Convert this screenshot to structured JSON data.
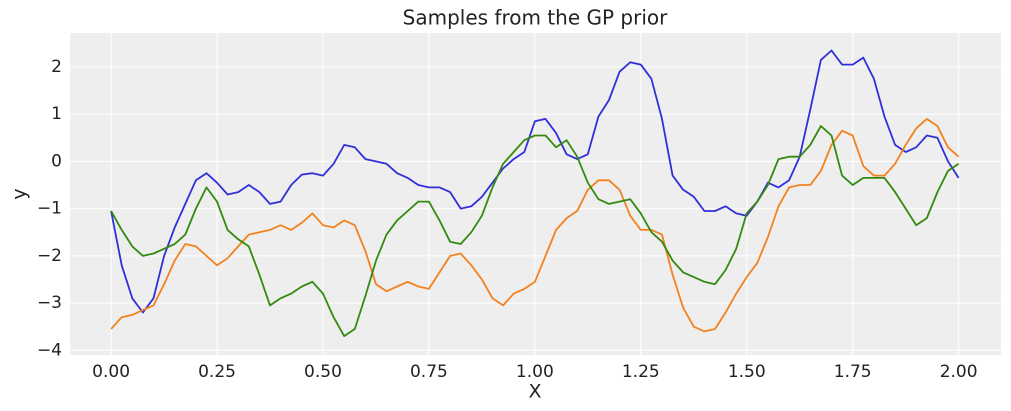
{
  "chart_data": {
    "type": "line",
    "title": "Samples from the GP prior",
    "xlabel": "X",
    "ylabel": "y",
    "x": [
      0,
      0.025,
      0.05,
      0.075,
      0.1,
      0.125,
      0.15,
      0.175,
      0.2,
      0.225,
      0.25,
      0.275,
      0.3,
      0.325,
      0.35,
      0.375,
      0.4,
      0.425,
      0.45,
      0.475,
      0.5,
      0.525,
      0.55,
      0.575,
      0.6,
      0.625,
      0.65,
      0.675,
      0.7,
      0.725,
      0.75,
      0.775,
      0.8,
      0.825,
      0.85,
      0.875,
      0.9,
      0.925,
      0.95,
      0.975,
      1,
      1.025,
      1.05,
      1.075,
      1.1,
      1.125,
      1.15,
      1.175,
      1.2,
      1.225,
      1.25,
      1.275,
      1.3,
      1.325,
      1.35,
      1.375,
      1.4,
      1.425,
      1.45,
      1.475,
      1.5,
      1.525,
      1.55,
      1.575,
      1.6,
      1.625,
      1.65,
      1.675,
      1.7,
      1.725,
      1.75,
      1.775,
      1.8,
      1.825,
      1.85,
      1.875,
      1.9,
      1.925,
      1.95,
      1.975,
      2
    ],
    "series": [
      {
        "color": "#3030d8",
        "values": [
          -1.05,
          -2.2,
          -2.9,
          -3.2,
          -2.9,
          -2.0,
          -1.4,
          -0.9,
          -0.4,
          -0.25,
          -0.45,
          -0.7,
          -0.65,
          -0.5,
          -0.65,
          -0.9,
          -0.85,
          -0.5,
          -0.28,
          -0.25,
          -0.3,
          -0.05,
          0.35,
          0.3,
          0.05,
          0.0,
          -0.05,
          -0.25,
          -0.35,
          -0.5,
          -0.55,
          -0.55,
          -0.65,
          -1.0,
          -0.95,
          -0.75,
          -0.45,
          -0.15,
          0.05,
          0.2,
          0.85,
          0.9,
          0.6,
          0.15,
          0.05,
          0.15,
          0.95,
          1.3,
          1.9,
          2.1,
          2.05,
          1.75,
          0.9,
          -0.3,
          -0.6,
          -0.75,
          -1.05,
          -1.05,
          -0.95,
          -1.1,
          -1.15,
          -0.85,
          -0.45,
          -0.55,
          -0.4,
          0.1,
          1.1,
          2.15,
          2.35,
          2.05,
          2.05,
          2.2,
          1.75,
          0.95,
          0.35,
          0.2,
          0.3,
          0.55,
          0.5,
          0.0,
          -0.35
        ]
      },
      {
        "color": "#f28220",
        "values": [
          -3.55,
          -3.3,
          -3.25,
          -3.15,
          -3.05,
          -2.6,
          -2.1,
          -1.75,
          -1.8,
          -2.0,
          -2.2,
          -2.05,
          -1.8,
          -1.55,
          -1.5,
          -1.45,
          -1.35,
          -1.45,
          -1.3,
          -1.1,
          -1.35,
          -1.4,
          -1.25,
          -1.35,
          -1.9,
          -2.6,
          -2.75,
          -2.65,
          -2.55,
          -2.65,
          -2.7,
          -2.35,
          -2.0,
          -1.95,
          -2.2,
          -2.5,
          -2.9,
          -3.05,
          -2.8,
          -2.7,
          -2.55,
          -2.0,
          -1.45,
          -1.2,
          -1.05,
          -0.6,
          -0.4,
          -0.4,
          -0.6,
          -1.15,
          -1.45,
          -1.45,
          -1.55,
          -2.4,
          -3.1,
          -3.5,
          -3.6,
          -3.55,
          -3.2,
          -2.8,
          -2.45,
          -2.15,
          -1.6,
          -0.95,
          -0.55,
          -0.5,
          -0.5,
          -0.2,
          0.35,
          0.65,
          0.55,
          -0.1,
          -0.3,
          -0.3,
          -0.05,
          0.35,
          0.7,
          0.9,
          0.75,
          0.3,
          0.1
        ]
      },
      {
        "color": "#338a0e",
        "values": [
          -1.05,
          -1.45,
          -1.8,
          -2.0,
          -1.95,
          -1.85,
          -1.75,
          -1.55,
          -1.0,
          -0.55,
          -0.85,
          -1.45,
          -1.65,
          -1.8,
          -2.4,
          -3.05,
          -2.9,
          -2.8,
          -2.65,
          -2.55,
          -2.8,
          -3.3,
          -3.7,
          -3.55,
          -2.85,
          -2.1,
          -1.55,
          -1.25,
          -1.05,
          -0.85,
          -0.85,
          -1.25,
          -1.7,
          -1.75,
          -1.5,
          -1.15,
          -0.55,
          -0.05,
          0.2,
          0.45,
          0.55,
          0.55,
          0.3,
          0.45,
          0.1,
          -0.45,
          -0.8,
          -0.9,
          -0.85,
          -0.8,
          -1.1,
          -1.5,
          -1.7,
          -2.1,
          -2.35,
          -2.45,
          -2.55,
          -2.6,
          -2.3,
          -1.85,
          -1.1,
          -0.85,
          -0.5,
          0.05,
          0.1,
          0.1,
          0.35,
          0.75,
          0.55,
          -0.3,
          -0.5,
          -0.35,
          -0.35,
          -0.35,
          -0.65,
          -1.0,
          -1.35,
          -1.2,
          -0.65,
          -0.2,
          -0.05
        ]
      }
    ],
    "xlim": [
      -0.097,
      2.1
    ],
    "ylim": [
      -4.1,
      2.72
    ],
    "xticks": [
      {
        "value": 0,
        "label": "0.00"
      },
      {
        "value": 0.25,
        "label": "0.25"
      },
      {
        "value": 0.5,
        "label": "0.50"
      },
      {
        "value": 0.75,
        "label": "0.75"
      },
      {
        "value": 1,
        "label": "1.00"
      },
      {
        "value": 1.25,
        "label": "1.25"
      },
      {
        "value": 1.5,
        "label": "1.50"
      },
      {
        "value": 1.75,
        "label": "1.75"
      },
      {
        "value": 2,
        "label": "2.00"
      }
    ],
    "yticks": [
      {
        "value": -4,
        "label": "−4"
      },
      {
        "value": -3,
        "label": "−3"
      },
      {
        "value": -2,
        "label": "−2"
      },
      {
        "value": -1,
        "label": "−1"
      },
      0,
      1,
      2
    ],
    "grid": true
  }
}
